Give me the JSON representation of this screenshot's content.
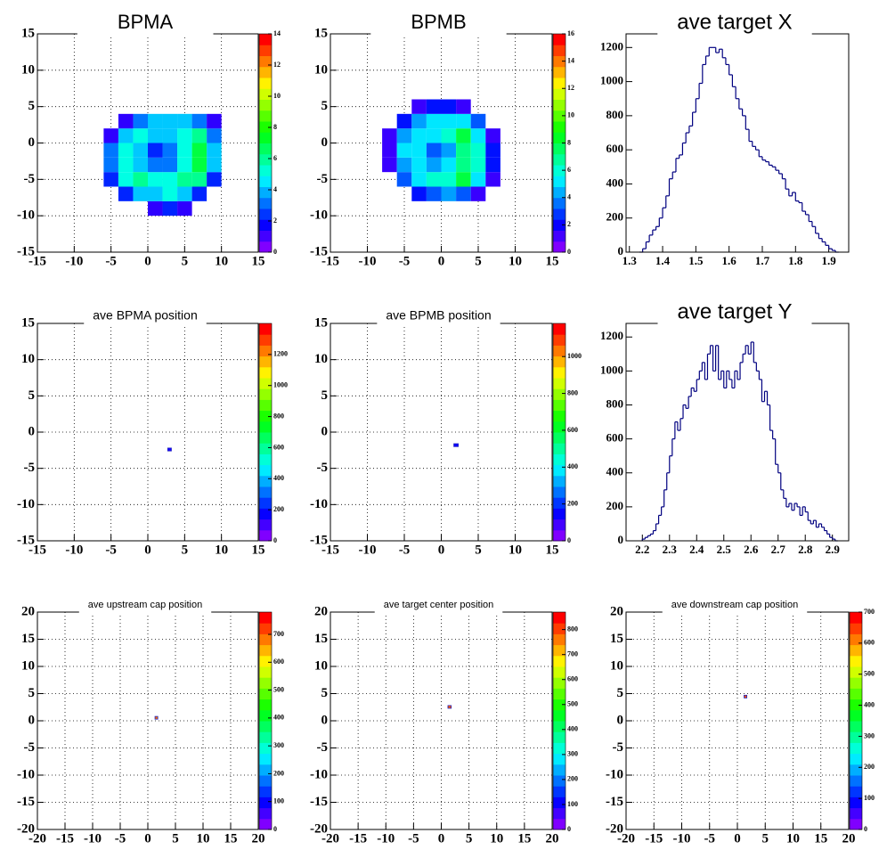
{
  "chart_data": [
    {
      "type": "heatmap",
      "title": "BPMA",
      "xlim": [
        -15,
        15
      ],
      "xticks": [
        -15,
        -10,
        -5,
        0,
        5,
        10,
        15
      ],
      "ylim": [
        -15,
        15
      ],
      "yticks": [
        -15,
        -10,
        -5,
        0,
        5,
        10,
        15
      ],
      "grid": true,
      "x_bins": [
        -6,
        -4,
        -2,
        0,
        2,
        4,
        6,
        8,
        10
      ],
      "y_bins": [
        -10,
        -8,
        -6,
        -4,
        -2,
        0,
        2,
        4,
        6
      ],
      "z": [
        [
          0,
          0,
          0,
          1,
          2,
          1,
          0,
          0
        ],
        [
          0,
          2,
          4,
          4,
          5,
          4,
          2,
          0
        ],
        [
          2,
          5,
          6,
          5,
          5,
          6,
          6,
          2
        ],
        [
          3,
          5,
          4,
          3,
          3,
          5,
          7,
          4
        ],
        [
          3,
          5,
          4,
          2,
          3,
          5,
          7,
          4
        ],
        [
          1,
          4,
          5,
          4,
          4,
          5,
          6,
          3
        ],
        [
          0,
          1,
          3,
          4,
          4,
          4,
          3,
          1
        ],
        [
          0,
          0,
          0,
          0,
          0,
          0,
          0,
          0
        ]
      ],
      "zlim": [
        0,
        14
      ],
      "zticks": [
        0,
        2,
        4,
        6,
        8,
        10,
        12,
        14
      ]
    },
    {
      "type": "heatmap",
      "title": "BPMB",
      "xlim": [
        -15,
        15
      ],
      "xticks": [
        -15,
        -10,
        -5,
        0,
        5,
        10,
        15
      ],
      "ylim": [
        -15,
        15
      ],
      "yticks": [
        -15,
        -10,
        -5,
        0,
        5,
        10,
        15
      ],
      "grid": true,
      "x_bins": [
        -8,
        -6,
        -4,
        -2,
        0,
        2,
        4,
        6,
        8
      ],
      "y_bins": [
        -10,
        -8,
        -6,
        -4,
        -2,
        0,
        2,
        4,
        6
      ],
      "z": [
        [
          0,
          0,
          0,
          0,
          0,
          0,
          0,
          0
        ],
        [
          0,
          0,
          2,
          3,
          4,
          3,
          1,
          0
        ],
        [
          0,
          3,
          5,
          6,
          6,
          8,
          5,
          1
        ],
        [
          1,
          4,
          5,
          4,
          5,
          7,
          6,
          2
        ],
        [
          1,
          5,
          5,
          3,
          4,
          7,
          6,
          2
        ],
        [
          1,
          4,
          5,
          5,
          6,
          8,
          5,
          1
        ],
        [
          0,
          2,
          4,
          5,
          5,
          5,
          3,
          0
        ],
        [
          0,
          0,
          1,
          2,
          2,
          1,
          0,
          0
        ]
      ],
      "zlim": [
        0,
        16
      ],
      "zticks": [
        0,
        2,
        4,
        6,
        8,
        10,
        12,
        14,
        16
      ]
    },
    {
      "type": "histogram",
      "title": "ave target X",
      "color": "#000080",
      "xlim": [
        1.29,
        1.96
      ],
      "xticks": [
        1.3,
        1.4,
        1.5,
        1.6,
        1.7,
        1.8,
        1.9
      ],
      "ylim": [
        0,
        1280
      ],
      "yticks": [
        0,
        200,
        400,
        600,
        800,
        1000,
        1200
      ],
      "grid": false,
      "bins": [
        1.33,
        1.34,
        1.35,
        1.36,
        1.37,
        1.38,
        1.39,
        1.4,
        1.41,
        1.42,
        1.43,
        1.44,
        1.45,
        1.46,
        1.47,
        1.48,
        1.49,
        1.5,
        1.51,
        1.52,
        1.53,
        1.54,
        1.55,
        1.56,
        1.57,
        1.58,
        1.59,
        1.6,
        1.61,
        1.62,
        1.63,
        1.64,
        1.65,
        1.66,
        1.67,
        1.68,
        1.69,
        1.7,
        1.71,
        1.72,
        1.73,
        1.74,
        1.75,
        1.76,
        1.77,
        1.78,
        1.79,
        1.8,
        1.81,
        1.82,
        1.83,
        1.84,
        1.85,
        1.86,
        1.87,
        1.88,
        1.89,
        1.9,
        1.91,
        1.92,
        1.93
      ],
      "values": [
        0,
        20,
        60,
        100,
        130,
        150,
        200,
        260,
        330,
        430,
        470,
        550,
        570,
        640,
        700,
        740,
        820,
        900,
        990,
        1100,
        1150,
        1200,
        1200,
        1170,
        1190,
        1140,
        1100,
        1040,
        970,
        900,
        840,
        800,
        720,
        650,
        620,
        600,
        560,
        540,
        530,
        510,
        500,
        480,
        460,
        430,
        370,
        330,
        350,
        300,
        290,
        240,
        220,
        180,
        150,
        110,
        80,
        60,
        40,
        20,
        10,
        0
      ]
    },
    {
      "type": "heatmap",
      "title": "ave BPMA position",
      "xlim": [
        -15,
        15
      ],
      "xticks": [
        -15,
        -10,
        -5,
        0,
        5,
        10,
        15
      ],
      "ylim": [
        -15,
        15
      ],
      "yticks": [
        -15,
        -10,
        -5,
        0,
        5,
        10,
        15
      ],
      "grid": true,
      "x_bins": [
        2.7,
        3.2
      ],
      "y_bins": [
        -2.6,
        -2.2
      ],
      "z": [
        [
          130
        ]
      ],
      "zlim": [
        0,
        1400
      ],
      "zticks": [
        0,
        200,
        400,
        600,
        800,
        1000,
        1200
      ]
    },
    {
      "type": "heatmap",
      "title": "ave BPMB position",
      "xlim": [
        -15,
        15
      ],
      "xticks": [
        -15,
        -10,
        -5,
        0,
        5,
        10,
        15
      ],
      "ylim": [
        -15,
        15
      ],
      "yticks": [
        -15,
        -10,
        -5,
        0,
        5,
        10,
        15
      ],
      "grid": true,
      "x_bins": [
        1.7,
        2.3
      ],
      "y_bins": [
        -2.0,
        -1.6
      ],
      "z": [
        [
          120
        ]
      ],
      "zlim": [
        0,
        1180
      ],
      "zticks": [
        0,
        200,
        400,
        600,
        800,
        1000
      ]
    },
    {
      "type": "histogram",
      "title": "ave target Y",
      "color": "#000080",
      "xlim": [
        2.14,
        2.96
      ],
      "xticks": [
        2.2,
        2.3,
        2.4,
        2.5,
        2.6,
        2.7,
        2.8,
        2.9
      ],
      "ylim": [
        0,
        1280
      ],
      "yticks": [
        0,
        200,
        400,
        600,
        800,
        1000,
        1200
      ],
      "grid": false,
      "bins": [
        2.2,
        2.21,
        2.22,
        2.23,
        2.24,
        2.25,
        2.26,
        2.27,
        2.28,
        2.29,
        2.3,
        2.31,
        2.32,
        2.33,
        2.34,
        2.35,
        2.36,
        2.37,
        2.38,
        2.39,
        2.4,
        2.41,
        2.42,
        2.43,
        2.44,
        2.45,
        2.46,
        2.47,
        2.48,
        2.49,
        2.5,
        2.51,
        2.52,
        2.53,
        2.54,
        2.55,
        2.56,
        2.57,
        2.58,
        2.59,
        2.6,
        2.61,
        2.62,
        2.63,
        2.64,
        2.65,
        2.66,
        2.67,
        2.68,
        2.69,
        2.7,
        2.71,
        2.72,
        2.73,
        2.74,
        2.75,
        2.76,
        2.77,
        2.78,
        2.79,
        2.8,
        2.81,
        2.82,
        2.83,
        2.84,
        2.85,
        2.86,
        2.87,
        2.88,
        2.89,
        2.9,
        2.91,
        2.92
      ],
      "values": [
        10,
        20,
        30,
        40,
        60,
        100,
        150,
        200,
        300,
        400,
        500,
        600,
        700,
        650,
        720,
        800,
        780,
        850,
        900,
        880,
        950,
        1000,
        1050,
        950,
        1100,
        1150,
        1000,
        1150,
        950,
        1000,
        900,
        1000,
        950,
        900,
        1000,
        950,
        1050,
        1100,
        1150,
        1100,
        1170,
        1050,
        1000,
        950,
        820,
        880,
        800,
        650,
        600,
        450,
        400,
        300,
        250,
        200,
        220,
        180,
        220,
        200,
        150,
        200,
        170,
        120,
        100,
        120,
        80,
        100,
        80,
        60,
        40,
        20,
        10,
        0
      ]
    },
    {
      "type": "heatmap",
      "title": "ave upstream cap position",
      "xlim": [
        -20,
        20
      ],
      "xticks": [
        -20,
        -15,
        -10,
        -5,
        0,
        5,
        10,
        15,
        20
      ],
      "ylim": [
        -20,
        20
      ],
      "yticks": [
        -20,
        -15,
        -10,
        -5,
        0,
        5,
        10,
        15,
        20
      ],
      "grid": true,
      "x_bins": [
        1.3,
        1.8
      ],
      "y_bins": [
        0.3,
        0.8
      ],
      "z": [
        [
          700
        ]
      ],
      "zlim": [
        0,
        780
      ],
      "zticks": [
        0,
        100,
        200,
        300,
        400,
        500,
        600,
        700
      ]
    },
    {
      "type": "heatmap",
      "title": "ave target center  position",
      "xlim": [
        -20,
        20
      ],
      "xticks": [
        -20,
        -15,
        -10,
        -5,
        0,
        5,
        10,
        15,
        20
      ],
      "ylim": [
        -20,
        20
      ],
      "yticks": [
        -20,
        -15,
        -10,
        -5,
        0,
        5,
        10,
        15,
        20
      ],
      "grid": true,
      "x_bins": [
        1.2,
        1.8
      ],
      "y_bins": [
        2.3,
        2.8
      ],
      "z": [
        [
          800
        ]
      ],
      "zlim": [
        0,
        870
      ],
      "zticks": [
        0,
        100,
        200,
        300,
        400,
        500,
        600,
        700,
        800
      ]
    },
    {
      "type": "heatmap",
      "title": "ave downstream cap position",
      "xlim": [
        -20,
        20
      ],
      "xticks": [
        -20,
        -15,
        -10,
        -5,
        0,
        5,
        10,
        15,
        20
      ],
      "ylim": [
        -20,
        20
      ],
      "yticks": [
        -20,
        -15,
        -10,
        -5,
        0,
        5,
        10,
        15,
        20
      ],
      "grid": true,
      "x_bins": [
        1.2,
        1.7
      ],
      "y_bins": [
        4.2,
        4.7
      ],
      "z": [
        [
          650
        ]
      ],
      "zlim": [
        0,
        700
      ],
      "zticks": [
        0,
        100,
        200,
        300,
        400,
        500,
        600,
        700
      ]
    }
  ]
}
